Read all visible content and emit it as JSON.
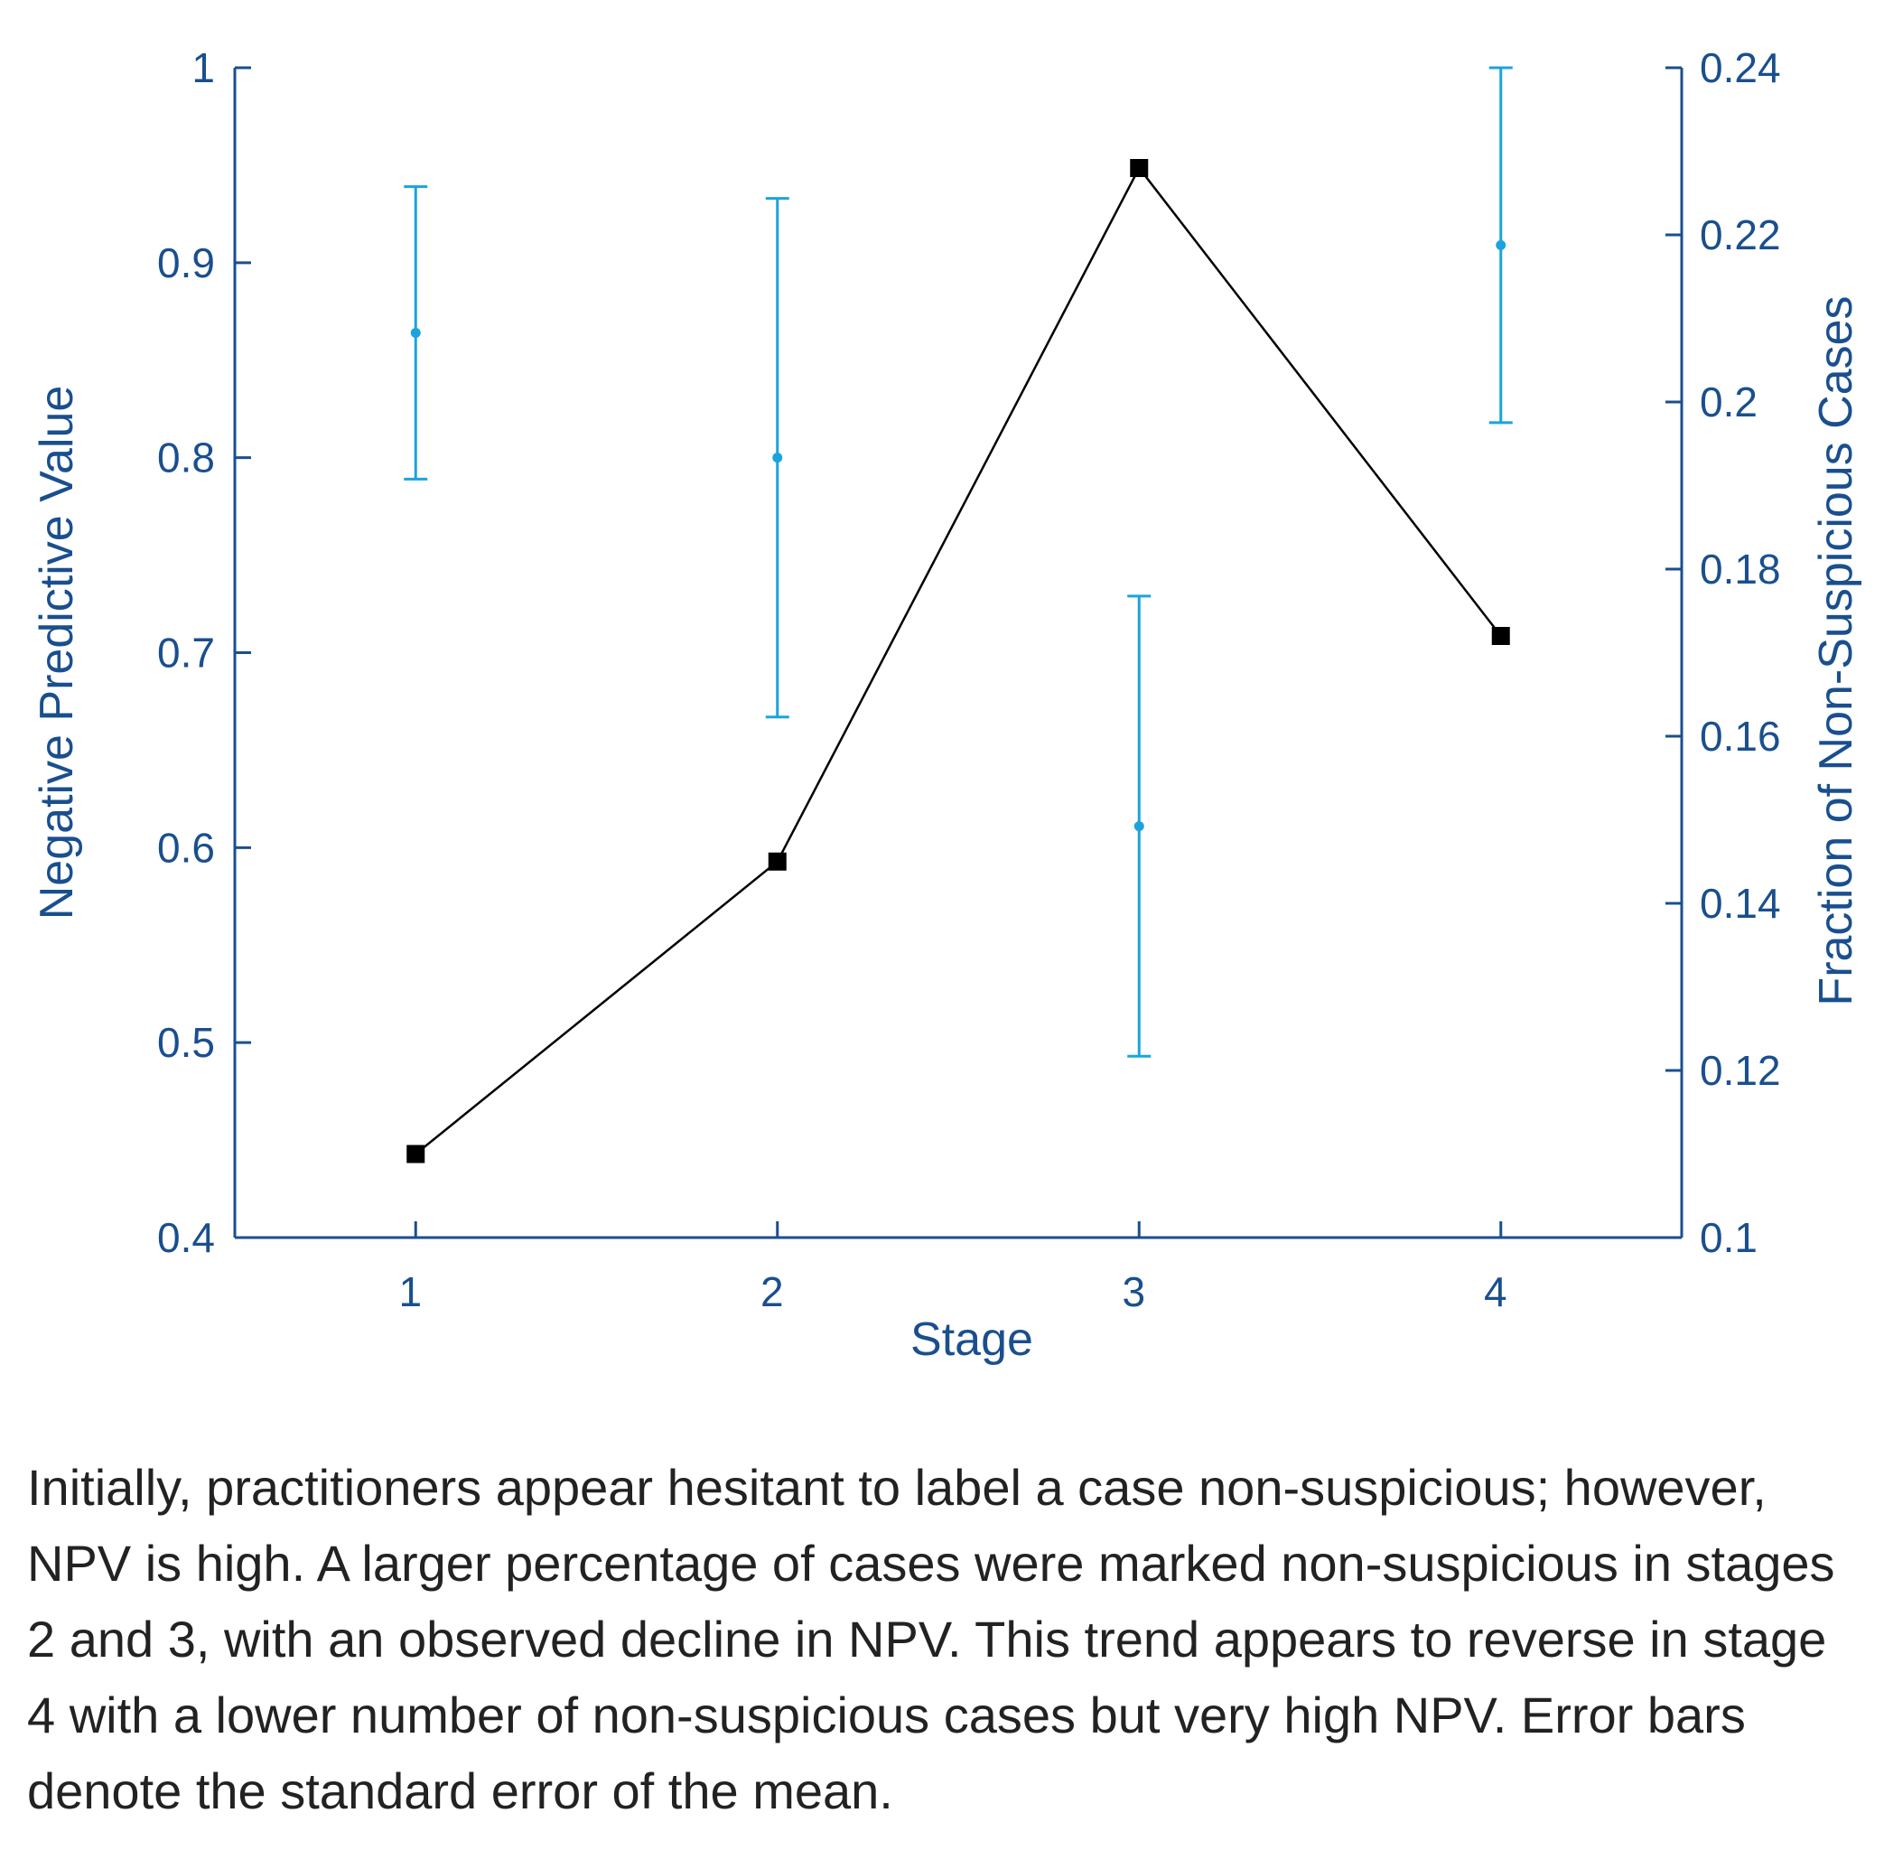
{
  "chart_data": {
    "type": "line",
    "categories": [
      1,
      2,
      3,
      4
    ],
    "xlabel": "Stage",
    "ylabel_left": "Negative Predictive Value",
    "ylabel_right": "Fraction of Non-Suspicious Cases",
    "ylim_left": [
      0.4,
      1.0
    ],
    "ylim_right": [
      0.1,
      0.24
    ],
    "yticks_left": [
      "0.4",
      "0.5",
      "0.6",
      "0.7",
      "0.8",
      "0.9",
      "1"
    ],
    "yticks_right": [
      "0.1",
      "0.12",
      "0.14",
      "0.16",
      "0.18",
      "0.2",
      "0.22",
      "0.24"
    ],
    "xticks": [
      "1",
      "2",
      "3",
      "4"
    ],
    "grid": false,
    "series": [
      {
        "axis": "left",
        "style": "error-bar",
        "values": [
          0.864,
          0.8,
          0.611,
          0.909
        ],
        "error": [
          0.075,
          0.133,
          0.118,
          0.091
        ]
      },
      {
        "axis": "right",
        "style": "line-square-markers",
        "values": [
          0.11,
          0.145,
          0.228,
          0.172
        ]
      }
    ],
    "colors": {
      "axis": "#1a4f8e",
      "error_bar": "#1ba3dd",
      "line": "#000000"
    }
  },
  "caption": "Initially, practitioners appear hesitant to label a case non-suspicious; however, NPV is high. A larger percentage of cases were marked non-suspicious in stages 2 and 3, with an observed decline in NPV. This trend appears to reverse in stage 4 with a lower number of non-suspicious cases but very high NPV. Error bars denote the standard error of the mean."
}
